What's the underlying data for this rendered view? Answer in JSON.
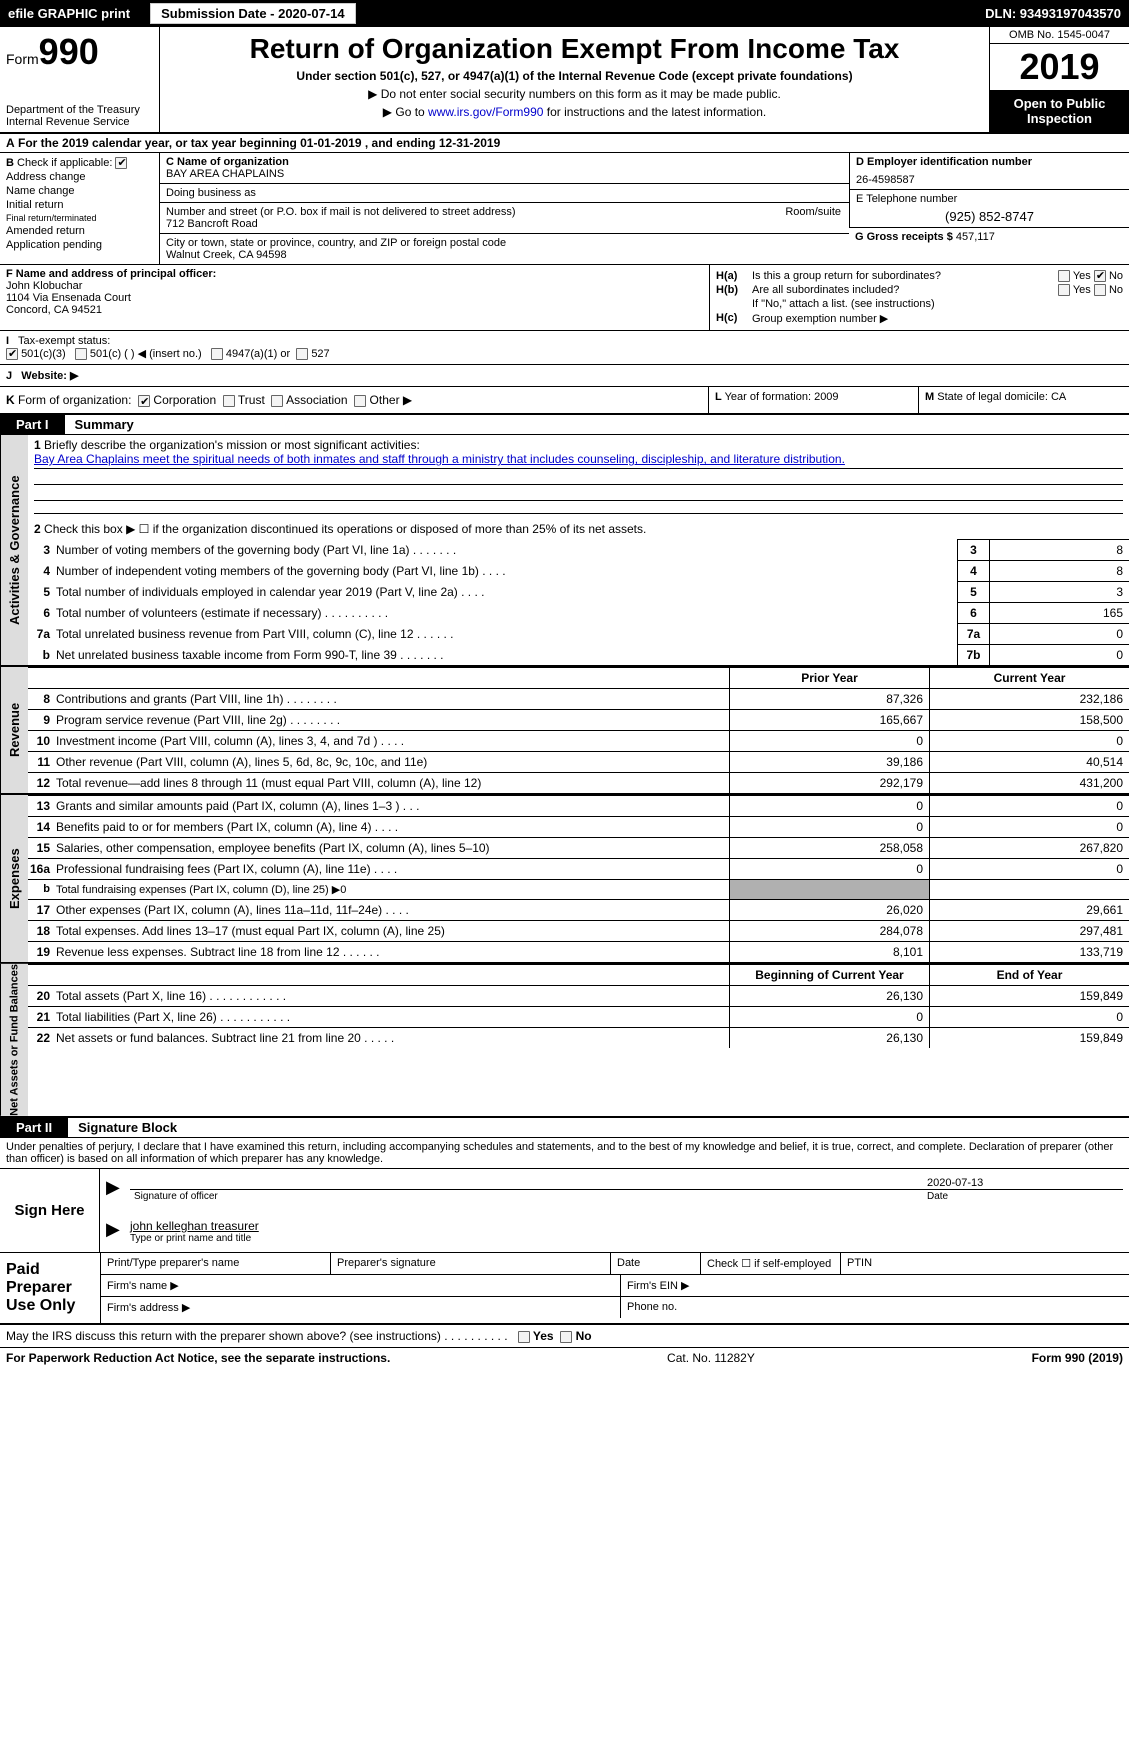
{
  "topbar": {
    "efile": "efile GRAPHIC print",
    "sub_label": "Submission Date - 2020-07-14",
    "dln": "DLN: 93493197043570"
  },
  "header": {
    "form_prefix": "Form",
    "form_number": "990",
    "title": "Return of Organization Exempt From Income Tax",
    "sub1": "Under section 501(c), 527, or 4947(a)(1) of the Internal Revenue Code (except private foundations)",
    "sub2a": "▶ Do not enter social security numbers on this form as it may be made public.",
    "sub2b_pre": "▶ Go to ",
    "sub2b_link": "www.irs.gov/Form990",
    "sub2b_post": " for instructions and the latest information.",
    "dept": "Department of the Treasury\nInternal Revenue Service",
    "omb": "OMB No. 1545-0047",
    "year": "2019",
    "open": "Open to Public Inspection"
  },
  "row_a": {
    "label": "A",
    "text": "For the 2019 calendar year, or tax year beginning 01-01-2019",
    "end": ", and ending 12-31-2019"
  },
  "col_b": {
    "label": "B",
    "check_if": "Check if applicable:",
    "items": [
      "Address change",
      "Name change",
      "Initial return",
      "Final return/terminated",
      "Amended return",
      "Application pending"
    ]
  },
  "col_c": {
    "c_name_lbl": "C Name of organization",
    "c_name": "BAY AREA CHAPLAINS",
    "dba_lbl": "Doing business as",
    "addr_lbl": "Number and street (or P.O. box if mail is not delivered to street address)",
    "addr": "712 Bancroft Road",
    "room_lbl": "Room/suite",
    "city_lbl": "City or town, state or province, country, and ZIP or foreign postal code",
    "city": "Walnut Creek, CA  94598"
  },
  "col_d": {
    "ein_lbl": "D Employer identification number",
    "ein": "26-4598587",
    "tel_lbl": "E Telephone number",
    "tel": "(925) 852-8747",
    "g_lbl": "G Gross receipts $",
    "g_val": "457,117"
  },
  "row_f": {
    "lbl": "F  Name and address of principal officer:",
    "name": "John Klobuchar",
    "addr1": "1104 Via Ensenada Court",
    "addr2": "Concord, CA  94521"
  },
  "row_h": {
    "a_lbl": "H(a)",
    "a_txt": "Is this a group return for subordinates?",
    "b_lbl": "H(b)",
    "b_txt": "Are all subordinates included?",
    "b_sub": "If \"No,\" attach a list. (see instructions)",
    "c_lbl": "H(c)",
    "c_txt": "Group exemption number ▶",
    "yes": "Yes",
    "no": "No"
  },
  "row_i": {
    "lbl": "I",
    "txt": "Tax-exempt status:",
    "opts": [
      "501(c)(3)",
      "501(c) (   ) ◀ (insert no.)",
      "4947(a)(1) or",
      "527"
    ]
  },
  "row_j": {
    "lbl": "J",
    "txt": "Website: ▶"
  },
  "row_k": {
    "lbl": "K",
    "txt": "Form of organization:",
    "opts": [
      "Corporation",
      "Trust",
      "Association",
      "Other ▶"
    ]
  },
  "row_l": {
    "lbl": "L",
    "txt": "Year of formation: 2009"
  },
  "row_m": {
    "lbl": "M",
    "txt": "State of legal domicile: CA"
  },
  "part1": {
    "tag": "Part I",
    "title": "Summary"
  },
  "section1": {
    "num": "1",
    "lbl": "Briefly describe the organization's mission or most significant activities:",
    "txt": "Bay Area Chaplains meet the spiritual needs of both inmates and staff through a ministry that includes counseling, discipleship, and literature distribution.",
    "line2_num": "2",
    "line2": "Check this box ▶ ☐ if the organization discontinued its operations or disposed of more than 25% of its net assets."
  },
  "gov_rows": [
    {
      "num": "3",
      "desc": "Number of voting members of the governing body (Part VI, line 1a)  .    .    .    .    .    .    .",
      "cell": "3",
      "val": "8"
    },
    {
      "num": "4",
      "desc": "Number of independent voting members of the governing body (Part VI, line 1b)  .    .    .    .",
      "cell": "4",
      "val": "8"
    },
    {
      "num": "5",
      "desc": "Total number of individuals employed in calendar year 2019 (Part V, line 2a)  .    .    .    .",
      "cell": "5",
      "val": "3"
    },
    {
      "num": "6",
      "desc": "Total number of volunteers (estimate if necessary)  .    .    .    .    .    .    .    .    .    .",
      "cell": "6",
      "val": "165"
    },
    {
      "num": "7a",
      "desc": "Total unrelated business revenue from Part VIII, column (C), line 12  .    .    .    .    .    .",
      "cell": "7a",
      "val": "0"
    },
    {
      "num": "b",
      "desc": "Net unrelated business taxable income from Form 990-T, line 39  .    .    .    .    .    .    .",
      "cell": "7b",
      "val": "0"
    }
  ],
  "side_labels": {
    "gov": "Activities & Governance",
    "rev": "Revenue",
    "exp": "Expenses",
    "net": "Net Assets or Fund Balances"
  },
  "col_hdrs": {
    "py": "Prior Year",
    "cy": "Current Year",
    "boy": "Beginning of Current Year",
    "eoy": "End of Year"
  },
  "rev_rows": [
    {
      "num": "8",
      "desc": "Contributions and grants (Part VIII, line 1h)  .    .    .    .    .    .    .    .",
      "py": "87,326",
      "cy": "232,186"
    },
    {
      "num": "9",
      "desc": "Program service revenue (Part VIII, line 2g)  .    .    .    .    .    .    .    .",
      "py": "165,667",
      "cy": "158,500"
    },
    {
      "num": "10",
      "desc": "Investment income (Part VIII, column (A), lines 3, 4, and 7d )  .    .    .    .",
      "py": "0",
      "cy": "0"
    },
    {
      "num": "11",
      "desc": "Other revenue (Part VIII, column (A), lines 5, 6d, 8c, 9c, 10c, and 11e)",
      "py": "39,186",
      "cy": "40,514"
    },
    {
      "num": "12",
      "desc": "Total revenue—add lines 8 through 11 (must equal Part VIII, column (A), line 12)",
      "py": "292,179",
      "cy": "431,200"
    }
  ],
  "exp_rows": [
    {
      "num": "13",
      "desc": "Grants and similar amounts paid (Part IX, column (A), lines 1–3 )  .    .    .",
      "py": "0",
      "cy": "0"
    },
    {
      "num": "14",
      "desc": "Benefits paid to or for members (Part IX, column (A), line 4)  .    .    .    .",
      "py": "0",
      "cy": "0"
    },
    {
      "num": "15",
      "desc": "Salaries, other compensation, employee benefits (Part IX, column (A), lines 5–10)",
      "py": "258,058",
      "cy": "267,820"
    },
    {
      "num": "16a",
      "desc": "Professional fundraising fees (Part IX, column (A), line 11e)  .    .    .    .",
      "py": "0",
      "cy": "0"
    },
    {
      "num": "b",
      "desc": "Total fundraising expenses (Part IX, column (D), line 25) ▶0",
      "py": "",
      "cy": "",
      "shaded": true
    },
    {
      "num": "17",
      "desc": "Other expenses (Part IX, column (A), lines 11a–11d, 11f–24e)  .    .    .    .",
      "py": "26,020",
      "cy": "29,661"
    },
    {
      "num": "18",
      "desc": "Total expenses. Add lines 13–17 (must equal Part IX, column (A), line 25)",
      "py": "284,078",
      "cy": "297,481"
    },
    {
      "num": "19",
      "desc": "Revenue less expenses. Subtract line 18 from line 12  .    .    .    .    .    .",
      "py": "8,101",
      "cy": "133,719"
    }
  ],
  "net_rows": [
    {
      "num": "20",
      "desc": "Total assets (Part X, line 16)  .    .    .    .    .    .    .    .    .    .    .    .",
      "py": "26,130",
      "cy": "159,849"
    },
    {
      "num": "21",
      "desc": "Total liabilities (Part X, line 26)  .    .    .    .    .    .    .    .    .    .    .",
      "py": "0",
      "cy": "0"
    },
    {
      "num": "22",
      "desc": "Net assets or fund balances. Subtract line 21 from line 20  .    .    .    .    .",
      "py": "26,130",
      "cy": "159,849"
    }
  ],
  "part2": {
    "tag": "Part II",
    "title": "Signature Block"
  },
  "penalty": "Under penalties of perjury, I declare that I have examined this return, including accompanying schedules and statements, and to the best of my knowledge and belief, it is true, correct, and complete. Declaration of preparer (other than officer) is based on all information of which preparer has any knowledge.",
  "sign": {
    "here": "Sign Here",
    "date": "2020-07-13",
    "sig_lbl": "Signature of officer",
    "date_lbl": "Date",
    "name": "john kelleghan treasurer",
    "name_lbl": "Type or print name and title"
  },
  "prep": {
    "lbl": "Paid Preparer Use Only",
    "h1": "Print/Type preparer's name",
    "h2": "Preparer's signature",
    "h3": "Date",
    "h4_pre": "Check ☐ if self-employed",
    "h5": "PTIN",
    "firm": "Firm's name   ▶",
    "firm_ein": "Firm's EIN ▶",
    "addr": "Firm's address ▶",
    "phone": "Phone no."
  },
  "footer": {
    "q": "May the IRS discuss this return with the preparer shown above? (see instructions)  .    .    .    .    .    .    .    .    .    .",
    "yes": "Yes",
    "no": "No",
    "pra": "For Paperwork Reduction Act Notice, see the separate instructions.",
    "cat": "Cat. No. 11282Y",
    "form": "Form 990 (2019)"
  }
}
